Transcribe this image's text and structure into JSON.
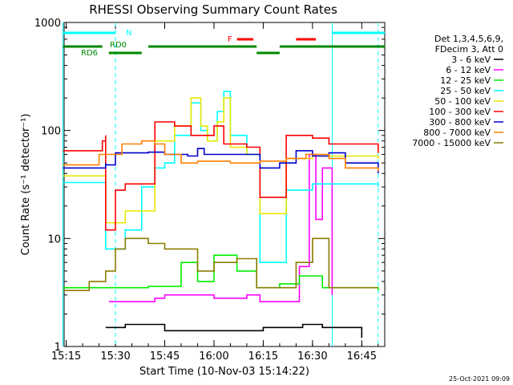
{
  "chart_data": {
    "type": "line",
    "title": "RHESSI Observing Summary Count Rates",
    "xlabel": "Start Time (10-Nov-03 15:14:22)",
    "ylabel": "Count Rate (s⁻¹ detector⁻¹)",
    "yscale": "log",
    "ylim": [
      1,
      1000
    ],
    "xlim": [
      "15:14:22",
      "16:52:00"
    ],
    "x_ticks": [
      "15:15",
      "15:30",
      "15:45",
      "16:00",
      "16:15",
      "16:30",
      "16:45"
    ],
    "y_ticks": [
      "1",
      "10",
      "100",
      "1000"
    ],
    "legend_header": [
      "Det 1,3,4,5,6,9,",
      "FDecim 3, Att 0"
    ],
    "legend_position": "right",
    "timestamp": "25-Oct-2021 09:09",
    "flag_labels": {
      "n": "N",
      "rd0": "RD0",
      "rd6": "RD6",
      "f": "F"
    },
    "colors": {
      "s1": "#000000",
      "s2": "#ff00ff",
      "s3": "#00ee00",
      "s4": "#00ffff",
      "s5": "#e8e800",
      "s6": "#ff0000",
      "s7": "#0000cc",
      "s8": "#ff8000",
      "s9": "#8b7d00",
      "flag_n": "#00ffff",
      "flag_rd0": "#008800",
      "flag_rd6": "#008800",
      "flag_f": "#ff0000"
    },
    "series": [
      {
        "name": "3 - 6 keV",
        "color": "#000000",
        "points": [
          [
            "15:27",
            1.5
          ],
          [
            "15:33",
            1.6
          ],
          [
            "15:45",
            1.4
          ],
          [
            "16:00",
            1.4
          ],
          [
            "16:15",
            1.5
          ],
          [
            "16:27",
            1.6
          ],
          [
            "16:33",
            1.5
          ],
          [
            "16:45",
            1.2
          ]
        ]
      },
      {
        "name": "6 - 12 keV",
        "color": "#ff00ff",
        "points": [
          [
            "15:28",
            2.6
          ],
          [
            "15:42",
            2.8
          ],
          [
            "15:45",
            3.0
          ],
          [
            "16:00",
            2.8
          ],
          [
            "16:10",
            3.0
          ],
          [
            "16:14",
            2.6
          ],
          [
            "16:26",
            5.5
          ],
          [
            "16:29",
            60
          ],
          [
            "16:31",
            15
          ],
          [
            "16:33",
            45
          ],
          [
            "16:36",
            3.0
          ]
        ]
      },
      {
        "name": "12 - 25 keV",
        "color": "#00ee00",
        "points": [
          [
            "15:14",
            3.5
          ],
          [
            "15:40",
            3.6
          ],
          [
            "15:50",
            6.0
          ],
          [
            "15:55",
            4.0
          ],
          [
            "16:00",
            7.0
          ],
          [
            "16:07",
            5.0
          ],
          [
            "16:13",
            3.5
          ],
          [
            "16:20",
            3.8
          ],
          [
            "16:26",
            4.5
          ],
          [
            "16:33",
            3.5
          ],
          [
            "16:50",
            3.3
          ]
        ]
      },
      {
        "name": "25 - 50 keV",
        "color": "#00ffff",
        "points": [
          [
            "15:14",
            33
          ],
          [
            "15:27",
            33
          ],
          [
            "15:27",
            8.0
          ],
          [
            "15:33",
            12
          ],
          [
            "15:38",
            30
          ],
          [
            "15:42",
            45
          ],
          [
            "15:45",
            50
          ],
          [
            "15:48",
            90
          ],
          [
            "15:53",
            180
          ],
          [
            "15:56",
            100
          ],
          [
            "15:58",
            80
          ],
          [
            "16:01",
            150
          ],
          [
            "16:03",
            230
          ],
          [
            "16:05",
            90
          ],
          [
            "16:10",
            60
          ],
          [
            "16:14",
            60
          ],
          [
            "16:14",
            6.0
          ],
          [
            "16:22",
            6.0
          ],
          [
            "16:22",
            28
          ],
          [
            "16:30",
            32
          ],
          [
            "16:50",
            30
          ]
        ]
      },
      {
        "name": "50 - 100 keV",
        "color": "#e8e800",
        "points": [
          [
            "15:14",
            38
          ],
          [
            "15:27",
            38
          ],
          [
            "15:27",
            14
          ],
          [
            "15:33",
            18
          ],
          [
            "15:42",
            22
          ],
          [
            "15:42",
            80
          ],
          [
            "15:48",
            110
          ],
          [
            "15:53",
            200
          ],
          [
            "15:56",
            110
          ],
          [
            "15:58",
            80
          ],
          [
            "16:01",
            120
          ],
          [
            "16:03",
            200
          ],
          [
            "16:05",
            70
          ],
          [
            "16:10",
            60
          ],
          [
            "16:14",
            60
          ],
          [
            "16:14",
            17
          ],
          [
            "16:22",
            17
          ],
          [
            "16:22",
            55
          ],
          [
            "16:30",
            58
          ],
          [
            "16:50",
            55
          ]
        ]
      },
      {
        "name": "100 - 300 keV",
        "color": "#ff0000",
        "points": [
          [
            "15:14",
            65
          ],
          [
            "15:26",
            80
          ],
          [
            "15:27",
            90
          ],
          [
            "15:27",
            12
          ],
          [
            "15:30",
            28
          ],
          [
            "15:33",
            32
          ],
          [
            "15:42",
            36
          ],
          [
            "15:42",
            120
          ],
          [
            "15:48",
            110
          ],
          [
            "15:53",
            90
          ],
          [
            "15:58",
            90
          ],
          [
            "16:00",
            110
          ],
          [
            "16:03",
            75
          ],
          [
            "16:10",
            70
          ],
          [
            "16:14",
            70
          ],
          [
            "16:14",
            24
          ],
          [
            "16:22",
            26
          ],
          [
            "16:22",
            90
          ],
          [
            "16:30",
            85
          ],
          [
            "16:35",
            75
          ],
          [
            "16:50",
            62
          ]
        ]
      },
      {
        "name": "300 - 800 keV",
        "color": "#0000cc",
        "points": [
          [
            "15:14",
            45
          ],
          [
            "15:27",
            50
          ],
          [
            "15:27",
            48
          ],
          [
            "15:30",
            62
          ],
          [
            "15:40",
            63
          ],
          [
            "15:45",
            60
          ],
          [
            "15:52",
            58
          ],
          [
            "15:55",
            68
          ],
          [
            "15:57",
            60
          ],
          [
            "16:05",
            60
          ],
          [
            "16:14",
            45
          ],
          [
            "16:20",
            50
          ],
          [
            "16:25",
            65
          ],
          [
            "16:30",
            58
          ],
          [
            "16:35",
            62
          ],
          [
            "16:40",
            50
          ],
          [
            "16:50",
            40
          ]
        ]
      },
      {
        "name": "800 - 7000 keV",
        "color": "#ff8000",
        "points": [
          [
            "15:14",
            48
          ],
          [
            "15:25",
            60
          ],
          [
            "15:32",
            75
          ],
          [
            "15:38",
            80
          ],
          [
            "15:42",
            75
          ],
          [
            "15:45",
            60
          ],
          [
            "15:50",
            50
          ],
          [
            "15:55",
            52
          ],
          [
            "16:05",
            50
          ],
          [
            "16:14",
            52
          ],
          [
            "16:22",
            55
          ],
          [
            "16:28",
            60
          ],
          [
            "16:35",
            55
          ],
          [
            "16:40",
            45
          ],
          [
            "16:50",
            42
          ]
        ]
      },
      {
        "name": "7000 - 15000 keV",
        "color": "#8b7d00",
        "points": [
          [
            "15:14",
            3.3
          ],
          [
            "15:22",
            4.0
          ],
          [
            "15:27",
            5.0
          ],
          [
            "15:30",
            8.0
          ],
          [
            "15:33",
            10
          ],
          [
            "15:40",
            9.0
          ],
          [
            "15:45",
            8.0
          ],
          [
            "15:55",
            5.0
          ],
          [
            "16:00",
            6.0
          ],
          [
            "16:07",
            6.5
          ],
          [
            "16:13",
            3.5
          ],
          [
            "16:22",
            3.5
          ],
          [
            "16:25",
            6.0
          ],
          [
            "16:30",
            10
          ],
          [
            "16:35",
            3.5
          ],
          [
            "16:50",
            3.5
          ]
        ]
      }
    ],
    "flags": [
      {
        "key": "n",
        "color": "#00ffff",
        "level": 1,
        "segments": [
          [
            "15:14",
            "15:30"
          ],
          [
            "16:36",
            "16:52"
          ]
        ]
      },
      {
        "key": "rd0",
        "color": "#008800",
        "level": 3,
        "segments": [
          [
            "15:14",
            "15:26"
          ],
          [
            "15:40",
            "16:13"
          ],
          [
            "16:20",
            "16:52"
          ]
        ]
      },
      {
        "key": "rd6",
        "color": "#008800",
        "level": 4,
        "segments": [
          [
            "15:28",
            "15:38"
          ],
          [
            "16:13",
            "16:20"
          ]
        ]
      },
      {
        "key": "f",
        "color": "#ff0000",
        "level": 2,
        "segments": [
          [
            "16:07",
            "16:12"
          ],
          [
            "16:25",
            "16:31"
          ]
        ]
      }
    ],
    "vlines": [
      {
        "time": "15:14",
        "style": "solid"
      },
      {
        "time": "15:30",
        "style": "dash"
      },
      {
        "time": "16:36",
        "style": "solid"
      },
      {
        "time": "16:50",
        "style": "dash"
      }
    ]
  }
}
